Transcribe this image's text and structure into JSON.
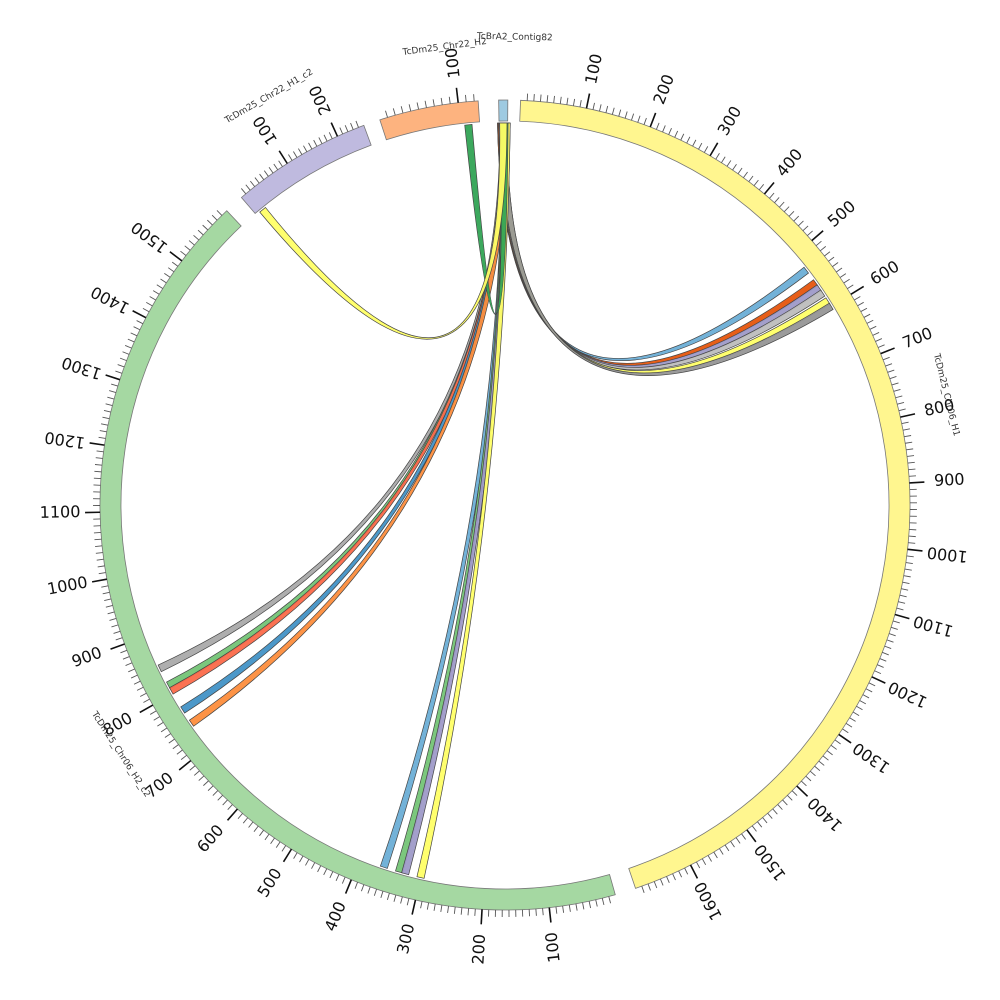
{
  "segments": [
    {
      "id": "h1",
      "name": "TcDm25_Chr06_H1",
      "length": 1690,
      "color": "#fff68f",
      "ticks": [
        "100",
        "200",
        "300",
        "400",
        "500",
        "600",
        "700",
        "800",
        "900",
        "1000",
        "1100",
        "1200",
        "1300",
        "1400",
        "1500",
        "1600"
      ]
    },
    {
      "id": "h2",
      "name": "TcDm25_Chr06_H2_c2",
      "length": 1600,
      "color": "#a5d8a2",
      "ticks": [
        "100",
        "200",
        "300",
        "400",
        "500",
        "600",
        "700",
        "800",
        "900",
        "1000",
        "1100",
        "1200",
        "1300",
        "1400",
        "1500"
      ]
    },
    {
      "id": "c22",
      "name": "TcDm25_Chr22_H1_c2",
      "length": 250,
      "color": "#bfbadf",
      "ticks": [
        "100",
        "200"
      ]
    },
    {
      "id": "hb",
      "name": "TcDm25_Chr22_H2",
      "length": 125,
      "color": "#fdb37f",
      "ticks": [
        "100"
      ]
    },
    {
      "id": "ctg",
      "name": "TcBrA2_Contig82",
      "length": 8,
      "color": "#9ecae1",
      "ticks": []
    }
  ],
  "links": [
    {
      "a": [
        "ctg",
        2
      ],
      "b": [
        "h1",
        530
      ],
      "color": "#6baed6"
    },
    {
      "a": [
        "ctg",
        2
      ],
      "b": [
        "h1",
        555
      ],
      "color": "#e6550d"
    },
    {
      "a": [
        "ctg",
        3
      ],
      "b": [
        "h1",
        565
      ],
      "color": "#9e9ac8"
    },
    {
      "a": [
        "ctg",
        3
      ],
      "b": [
        "h1",
        575
      ],
      "color": "#bdbdbd"
    },
    {
      "a": [
        "ctg",
        4
      ],
      "b": [
        "h1",
        590
      ],
      "color": "#ffff66"
    },
    {
      "a": [
        "ctg",
        4
      ],
      "b": [
        "h1",
        600
      ],
      "color": "#969696"
    },
    {
      "a": [
        "ctg",
        4
      ],
      "b": [
        "h2",
        845
      ],
      "color": "#aaaaaa"
    },
    {
      "a": [
        "ctg",
        5
      ],
      "b": [
        "h2",
        815
      ],
      "color": "#74c476"
    },
    {
      "a": [
        "ctg",
        5
      ],
      "b": [
        "h2",
        805
      ],
      "color": "#fb6a4a"
    },
    {
      "a": [
        "ctg",
        5
      ],
      "b": [
        "h2",
        770
      ],
      "color": "#4292c6"
    },
    {
      "a": [
        "ctg",
        6
      ],
      "b": [
        "h2",
        745
      ],
      "color": "#fd8d3c"
    },
    {
      "a": [
        "ctg",
        6
      ],
      "b": [
        "h2",
        360
      ],
      "color": "#6baed6"
    },
    {
      "a": [
        "ctg",
        6
      ],
      "b": [
        "h2",
        335
      ],
      "color": "#74c476"
    },
    {
      "a": [
        "ctg",
        7
      ],
      "b": [
        "h2",
        325
      ],
      "color": "#9e9ac8"
    },
    {
      "a": [
        "ctg",
        7
      ],
      "b": [
        "h2",
        300
      ],
      "color": "#ffff66"
    },
    {
      "a": [
        "hb",
        110
      ],
      "b": [
        "ctg",
        5
      ],
      "color": "#31a354"
    },
    {
      "a": [
        "c22",
        15
      ],
      "b": [
        "ctg",
        4
      ],
      "color": "#ffff66"
    }
  ]
}
